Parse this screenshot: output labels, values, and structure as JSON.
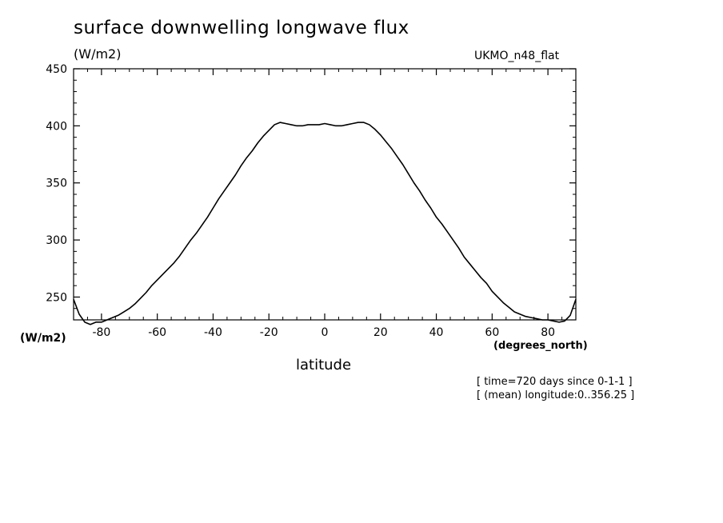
{
  "chart_data": {
    "type": "line",
    "title": "surface downwelling longwave flux",
    "units_top": "(W/m2)",
    "units_left": "(W/m2)",
    "model_label": "UKMO_n48_flat",
    "xlabel": "latitude",
    "x_units": "(degrees_north)",
    "info_lines": [
      "[ time=720 days since 0-1-1 ]",
      "[ (mean) longitude:0..356.25 ]"
    ],
    "xlim": [
      -90,
      90
    ],
    "ylim": [
      230,
      450
    ],
    "x_ticks": [
      -80,
      -60,
      -40,
      -20,
      0,
      20,
      40,
      60,
      80
    ],
    "x_tick_labels": [
      "-80",
      "-60",
      "-40",
      "-20",
      "0",
      "20",
      "40",
      "60",
      "80"
    ],
    "y_ticks": [
      250,
      300,
      350,
      400,
      450
    ],
    "y_tick_labels": [
      "250",
      "300",
      "350",
      "400",
      "450"
    ],
    "grid": false,
    "series": [
      {
        "x": [
          -90,
          -88,
          -86,
          -84,
          -82,
          -80,
          -78,
          -76,
          -74,
          -72,
          -70,
          -68,
          -66,
          -64,
          -62,
          -60,
          -58,
          -56,
          -54,
          -52,
          -50,
          -48,
          -46,
          -44,
          -42,
          -40,
          -38,
          -36,
          -34,
          -32,
          -30,
          -28,
          -26,
          -24,
          -22,
          -20,
          -18,
          -16,
          -14,
          -12,
          -10,
          -8,
          -6,
          -4,
          -2,
          0,
          2,
          4,
          6,
          8,
          10,
          12,
          14,
          16,
          18,
          20,
          22,
          24,
          26,
          28,
          30,
          32,
          34,
          36,
          38,
          40,
          42,
          44,
          46,
          48,
          50,
          52,
          54,
          56,
          58,
          60,
          62,
          64,
          66,
          68,
          70,
          72,
          74,
          76,
          78,
          80,
          82,
          84,
          86,
          88,
          90
        ],
        "y": [
          248,
          235,
          228,
          226,
          228,
          228,
          230,
          232,
          234,
          237,
          240,
          244,
          249,
          254,
          260,
          265,
          270,
          275,
          280,
          286,
          293,
          300,
          306,
          313,
          320,
          328,
          336,
          343,
          350,
          357,
          365,
          372,
          378,
          385,
          391,
          396,
          401,
          403,
          402,
          401,
          400,
          400,
          401,
          401,
          401,
          402,
          401,
          400,
          400,
          401,
          402,
          403,
          403,
          401,
          397,
          392,
          386,
          380,
          373,
          366,
          358,
          350,
          343,
          335,
          328,
          320,
          314,
          307,
          300,
          293,
          285,
          279,
          273,
          267,
          262,
          255,
          250,
          245,
          241,
          237,
          235,
          233,
          232,
          231,
          230,
          230,
          229,
          228,
          229,
          234,
          248
        ]
      }
    ]
  }
}
